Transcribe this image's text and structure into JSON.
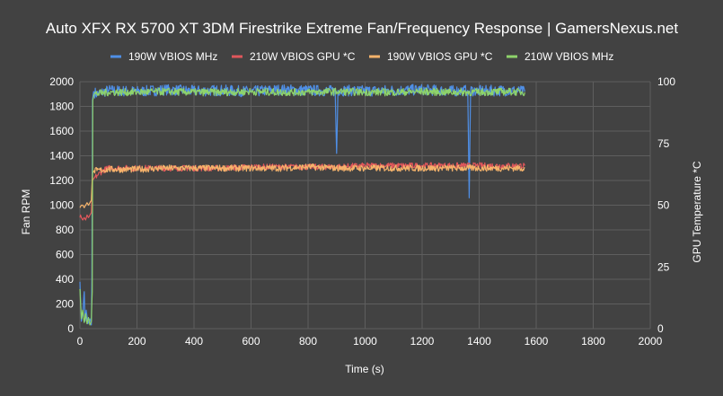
{
  "chart_data": {
    "type": "line",
    "title": "Auto XFX RX 5700 XT 3DM Firestrike Extreme Fan/Frequency Response | GamersNexus.net",
    "xlabel": "Time (s)",
    "ylabel_left": "Fan RPM",
    "ylabel_right": "GPU Temperature *C",
    "xlim": [
      0,
      2000
    ],
    "ylim_left": [
      0,
      2000
    ],
    "ylim_right": [
      0,
      100
    ],
    "x_ticks": [
      0,
      200,
      400,
      600,
      800,
      1000,
      1200,
      1400,
      1600,
      1800,
      2000
    ],
    "y_ticks_left": [
      0,
      200,
      400,
      600,
      800,
      1000,
      1200,
      1400,
      1600,
      1800,
      2000
    ],
    "y_ticks_right": [
      0,
      25,
      50,
      75,
      100
    ],
    "grid": true,
    "legend_position": "top",
    "series": [
      {
        "name": "190W VBIOS MHz",
        "color": "#4f8fe6",
        "axis": "left",
        "points": [
          [
            0,
            380
          ],
          [
            5,
            60
          ],
          [
            10,
            120
          ],
          [
            15,
            300
          ],
          [
            18,
            60
          ],
          [
            22,
            150
          ],
          [
            28,
            40
          ],
          [
            35,
            80
          ],
          [
            40,
            30
          ],
          [
            42,
            400
          ],
          [
            44,
            1850
          ],
          [
            48,
            1920
          ],
          [
            60,
            1900
          ],
          [
            100,
            1930
          ],
          [
            200,
            1920
          ],
          [
            300,
            1935
          ],
          [
            400,
            1925
          ],
          [
            500,
            1930
          ],
          [
            600,
            1920
          ],
          [
            700,
            1935
          ],
          [
            800,
            1930
          ],
          [
            895,
            1925
          ],
          [
            900,
            1420
          ],
          [
            905,
            1930
          ],
          [
            1000,
            1925
          ],
          [
            1100,
            1930
          ],
          [
            1200,
            1935
          ],
          [
            1300,
            1925
          ],
          [
            1360,
            1930
          ],
          [
            1365,
            1060
          ],
          [
            1370,
            1930
          ],
          [
            1400,
            1925
          ],
          [
            1500,
            1930
          ],
          [
            1560,
            1920
          ]
        ],
        "noise": 45
      },
      {
        "name": "210W VBIOS GPU *C",
        "color": "#e0575b",
        "axis": "right",
        "points": [
          [
            0,
            45
          ],
          [
            2,
            46
          ],
          [
            5,
            45
          ],
          [
            10,
            44
          ],
          [
            15,
            45
          ],
          [
            20,
            44
          ],
          [
            25,
            46
          ],
          [
            30,
            45
          ],
          [
            35,
            46
          ],
          [
            40,
            47
          ],
          [
            44,
            60
          ],
          [
            50,
            61
          ],
          [
            60,
            62
          ],
          [
            80,
            64
          ],
          [
            100,
            65
          ],
          [
            150,
            65
          ],
          [
            200,
            65
          ],
          [
            300,
            65
          ],
          [
            400,
            65
          ],
          [
            500,
            65
          ],
          [
            600,
            65.5
          ],
          [
            700,
            65.5
          ],
          [
            800,
            65.5
          ],
          [
            900,
            65.5
          ],
          [
            1000,
            66
          ],
          [
            1100,
            66
          ],
          [
            1200,
            66
          ],
          [
            1300,
            66
          ],
          [
            1400,
            66
          ],
          [
            1500,
            66
          ],
          [
            1560,
            66
          ]
        ],
        "noise": 1.2
      },
      {
        "name": "190W VBIOS GPU *C",
        "color": "#f5b36b",
        "axis": "right",
        "points": [
          [
            0,
            49
          ],
          [
            5,
            50
          ],
          [
            10,
            50
          ],
          [
            15,
            49
          ],
          [
            20,
            50
          ],
          [
            25,
            51
          ],
          [
            30,
            50
          ],
          [
            35,
            51
          ],
          [
            40,
            52
          ],
          [
            44,
            63
          ],
          [
            50,
            64
          ],
          [
            60,
            64
          ],
          [
            100,
            64.5
          ],
          [
            200,
            64.5
          ],
          [
            300,
            65
          ],
          [
            400,
            65
          ],
          [
            500,
            65
          ],
          [
            600,
            65
          ],
          [
            700,
            65
          ],
          [
            800,
            65.5
          ],
          [
            900,
            65
          ],
          [
            1000,
            65
          ],
          [
            1100,
            65
          ],
          [
            1200,
            65
          ],
          [
            1300,
            65
          ],
          [
            1400,
            65
          ],
          [
            1500,
            65
          ],
          [
            1560,
            65
          ]
        ],
        "noise": 1.3
      },
      {
        "name": "210W VBIOS MHz",
        "color": "#8ed36b",
        "axis": "left",
        "points": [
          [
            0,
            320
          ],
          [
            5,
            80
          ],
          [
            10,
            150
          ],
          [
            15,
            50
          ],
          [
            20,
            120
          ],
          [
            25,
            40
          ],
          [
            30,
            90
          ],
          [
            35,
            30
          ],
          [
            40,
            60
          ],
          [
            43,
            300
          ],
          [
            45,
            1850
          ],
          [
            50,
            1900
          ],
          [
            100,
            1915
          ],
          [
            200,
            1915
          ],
          [
            300,
            1920
          ],
          [
            400,
            1915
          ],
          [
            500,
            1915
          ],
          [
            600,
            1920
          ],
          [
            700,
            1915
          ],
          [
            800,
            1915
          ],
          [
            900,
            1920
          ],
          [
            1000,
            1915
          ],
          [
            1100,
            1915
          ],
          [
            1200,
            1920
          ],
          [
            1300,
            1915
          ],
          [
            1400,
            1915
          ],
          [
            1500,
            1920
          ],
          [
            1560,
            1915
          ]
        ],
        "noise": 30
      }
    ]
  }
}
